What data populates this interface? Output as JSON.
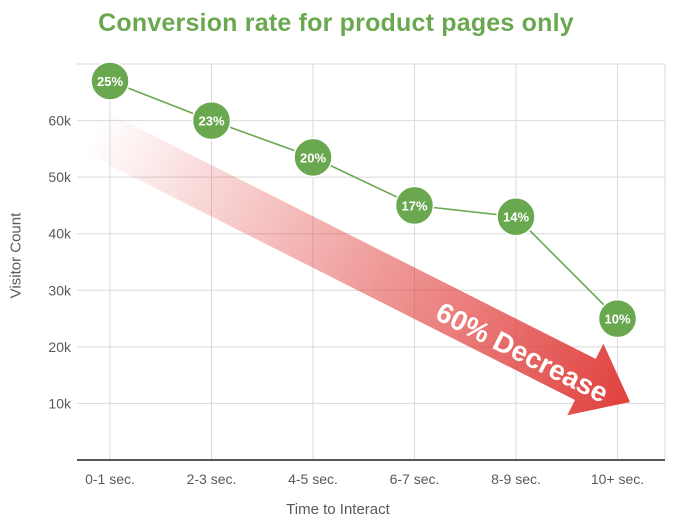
{
  "chart_data": {
    "type": "line",
    "title": "Conversion rate for product pages only",
    "xlabel": "Time to Interact",
    "ylabel": "Visitor Count",
    "categories": [
      "0-1 sec.",
      "2-3 sec.",
      "4-5 sec.",
      "6-7 sec.",
      "8-9 sec.",
      "10+ sec."
    ],
    "y_ticks": [
      "10k",
      "20k",
      "30k",
      "40k",
      "50k",
      "60k"
    ],
    "ylim": [
      0,
      70000
    ],
    "grid": true,
    "series": [
      {
        "values": [
          67000,
          60000,
          53500,
          45000,
          43000,
          25000
        ],
        "point_labels": [
          "25%",
          "23%",
          "20%",
          "17%",
          "14%",
          "10%"
        ]
      }
    ],
    "annotation": "60% Decrease",
    "colors": {
      "title": "#6aa84f",
      "line": "#6aa84f",
      "marker": "#6aa84f",
      "marker_border": "#ffffff",
      "arrow": "#e0413e",
      "grid": "#d9d9d9",
      "axis": "#595959"
    }
  }
}
